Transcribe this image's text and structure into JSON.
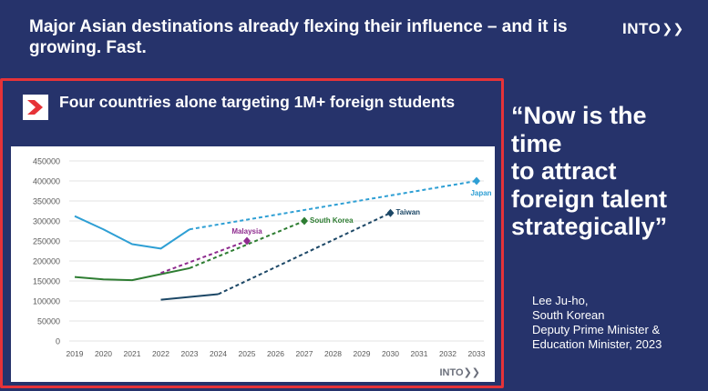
{
  "slide": {
    "title": "Major Asian destinations already flexing their influence – and it is growing. Fast.",
    "logo": "INTO",
    "logo_icon": "double-chevron-right-icon"
  },
  "panel": {
    "title": "Four countries alone targeting 1M+ foreign students",
    "icon": "chevron-right-icon",
    "border_color": "#e63338"
  },
  "quote": {
    "lines": [
      "“Now is the",
      "time",
      "to attract",
      "foreign talent",
      "strategically”"
    ],
    "attribution": [
      "Lee Ju-ho,",
      "South Korean",
      "Deputy Prime Minister &",
      "Education Minister, 2023"
    ]
  },
  "chart_data": {
    "type": "line",
    "xlim": [
      2019,
      2033
    ],
    "ylim": [
      0,
      450000
    ],
    "x_ticks": [
      2019,
      2020,
      2021,
      2022,
      2023,
      2024,
      2025,
      2026,
      2027,
      2028,
      2029,
      2030,
      2031,
      2032,
      2033
    ],
    "y_ticks": [
      0,
      50000,
      100000,
      150000,
      200000,
      250000,
      300000,
      350000,
      400000,
      450000
    ],
    "y_tick_labels": [
      "0",
      "50000",
      "100000",
      "150000",
      "200000",
      "250000",
      "300000",
      "350000",
      "400000",
      "450000"
    ],
    "grid": "horizontal",
    "watermark": "INTO",
    "series": [
      {
        "name": "Japan",
        "color": "#2e9fd4",
        "actual": [
          [
            2019,
            312000
          ],
          [
            2020,
            279000
          ],
          [
            2021,
            242000
          ],
          [
            2022,
            231000
          ],
          [
            2023,
            279000
          ]
        ],
        "projected": [
          [
            2023,
            279000
          ],
          [
            2033,
            400000
          ]
        ],
        "target": [
          2033,
          400000
        ],
        "marker": "diamond",
        "label_pos": "below"
      },
      {
        "name": "South Korea",
        "color": "#2e7d32",
        "actual": [
          [
            2019,
            160000
          ],
          [
            2020,
            154000
          ],
          [
            2021,
            152000
          ],
          [
            2022,
            167000
          ],
          [
            2023,
            182000
          ]
        ],
        "projected": [
          [
            2023,
            182000
          ],
          [
            2027,
            300000
          ]
        ],
        "target": [
          2027,
          300000
        ],
        "marker": "diamond",
        "label_pos": "right"
      },
      {
        "name": "Malaysia",
        "color": "#8e2b8e",
        "actual": [],
        "projected": [
          [
            2022,
            170000
          ],
          [
            2025,
            250000
          ]
        ],
        "target": [
          2025,
          250000
        ],
        "marker": "diamond",
        "label_pos": "above"
      },
      {
        "name": "Taiwan",
        "color": "#1c4766",
        "actual": [
          [
            2022,
            103000
          ],
          [
            2024,
            117000
          ]
        ],
        "projected": [
          [
            2024,
            117000
          ],
          [
            2030,
            320000
          ]
        ],
        "target": [
          2030,
          320000
        ],
        "marker": "diamond",
        "label_pos": "right"
      }
    ]
  }
}
